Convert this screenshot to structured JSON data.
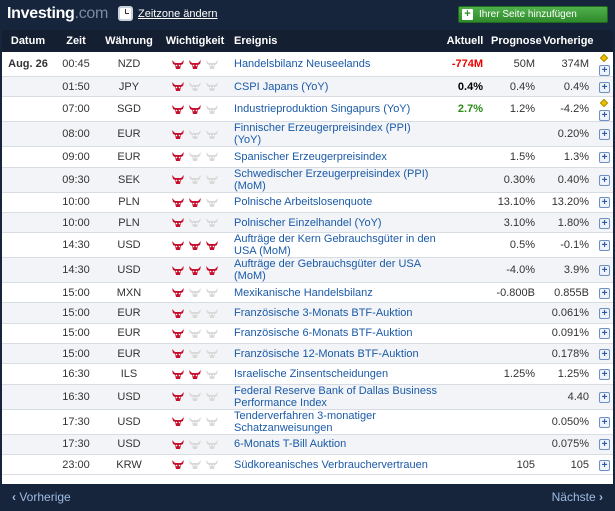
{
  "header": {
    "logo_main": "Investing",
    "logo_suffix": ".com",
    "timezone_link": "Zeitzone ändern",
    "add_button": "Ihrer Seite hinzufügen"
  },
  "table": {
    "columns": [
      "Datum",
      "Zeit",
      "Währung",
      "Wichtigkeit",
      "Ereignis",
      "Aktuell",
      "Prognose",
      "Vorherige"
    ],
    "rows": [
      {
        "date": "Aug. 26",
        "time": "00:45",
        "currency": "NZD",
        "importance": 2,
        "event": "Handelsbilanz Neuseelands",
        "actual": "-774M",
        "actual_style": "red",
        "forecast": "50M",
        "previous": "374M",
        "marker": true
      },
      {
        "date": "",
        "time": "01:50",
        "currency": "JPY",
        "importance": 1,
        "event": "CSPI Japans (YoY)",
        "actual": "0.4%",
        "actual_style": "blk",
        "forecast": "0.4%",
        "previous": "0.4%",
        "marker": false
      },
      {
        "date": "",
        "time": "07:00",
        "currency": "SGD",
        "importance": 2,
        "event": "Industrieproduktion Singapurs (YoY)",
        "actual": "2.7%",
        "actual_style": "green",
        "forecast": "1.2%",
        "previous": "-4.2%",
        "marker": true
      },
      {
        "date": "",
        "time": "08:00",
        "currency": "EUR",
        "importance": 1,
        "event": "Finnischer Erzeugerpreisindex (PPI) (YoY)",
        "actual": "",
        "actual_style": "",
        "forecast": "",
        "previous": "0.20%",
        "marker": false
      },
      {
        "date": "",
        "time": "09:00",
        "currency": "EUR",
        "importance": 1,
        "event": "Spanischer Erzeugerpreisindex",
        "actual": "",
        "actual_style": "",
        "forecast": "1.5%",
        "previous": "1.3%",
        "marker": false
      },
      {
        "date": "",
        "time": "09:30",
        "currency": "SEK",
        "importance": 1,
        "event": "Schwedischer Erzeugerpreisindex (PPI) (MoM)",
        "actual": "",
        "actual_style": "",
        "forecast": "0.30%",
        "previous": "0.40%",
        "marker": false
      },
      {
        "date": "",
        "time": "10:00",
        "currency": "PLN",
        "importance": 2,
        "event": "Polnische Arbeitslosenquote",
        "actual": "",
        "actual_style": "",
        "forecast": "13.10%",
        "previous": "13.20%",
        "marker": false
      },
      {
        "date": "",
        "time": "10:00",
        "currency": "PLN",
        "importance": 1,
        "event": "Polnischer Einzelhandel (YoY)",
        "actual": "",
        "actual_style": "",
        "forecast": "3.10%",
        "previous": "1.80%",
        "marker": false
      },
      {
        "date": "",
        "time": "14:30",
        "currency": "USD",
        "importance": 3,
        "event": "Aufträge der Kern Gebrauchsgüter in den USA (MoM)",
        "actual": "",
        "actual_style": "",
        "forecast": "0.5%",
        "previous": "-0.1%",
        "marker": false
      },
      {
        "date": "",
        "time": "14:30",
        "currency": "USD",
        "importance": 3,
        "event": "Aufträge der Gebrauchsgüter der USA (MoM)",
        "actual": "",
        "actual_style": "",
        "forecast": "-4.0%",
        "previous": "3.9%",
        "marker": false
      },
      {
        "date": "",
        "time": "15:00",
        "currency": "MXN",
        "importance": 1,
        "event": "Mexikanische Handelsbilanz",
        "actual": "",
        "actual_style": "",
        "forecast": "-0.800B",
        "previous": "0.855B",
        "marker": false
      },
      {
        "date": "",
        "time": "15:00",
        "currency": "EUR",
        "importance": 1,
        "event": "Französische 3-Monats BTF-Auktion",
        "actual": "",
        "actual_style": "",
        "forecast": "",
        "previous": "0.061%",
        "marker": false
      },
      {
        "date": "",
        "time": "15:00",
        "currency": "EUR",
        "importance": 1,
        "event": "Französische 6-Monats BTF-Auktion",
        "actual": "",
        "actual_style": "",
        "forecast": "",
        "previous": "0.091%",
        "marker": false
      },
      {
        "date": "",
        "time": "15:00",
        "currency": "EUR",
        "importance": 1,
        "event": "Französische 12-Monats BTF-Auktion",
        "actual": "",
        "actual_style": "",
        "forecast": "",
        "previous": "0.178%",
        "marker": false
      },
      {
        "date": "",
        "time": "16:30",
        "currency": "ILS",
        "importance": 2,
        "event": "Israelische Zinsentscheidungen",
        "actual": "",
        "actual_style": "",
        "forecast": "1.25%",
        "previous": "1.25%",
        "marker": false
      },
      {
        "date": "",
        "time": "16:30",
        "currency": "USD",
        "importance": 1,
        "event": "Federal Reserve Bank of Dallas Business Performance Index",
        "actual": "",
        "actual_style": "",
        "forecast": "",
        "previous": "4.40",
        "marker": false
      },
      {
        "date": "",
        "time": "17:30",
        "currency": "USD",
        "importance": 1,
        "event": "Tenderverfahren 3-monatiger Schatzanweisungen",
        "actual": "",
        "actual_style": "",
        "forecast": "",
        "previous": "0.050%",
        "marker": false
      },
      {
        "date": "",
        "time": "17:30",
        "currency": "USD",
        "importance": 1,
        "event": "6-Monats T-Bill Auktion",
        "actual": "",
        "actual_style": "",
        "forecast": "",
        "previous": "0.075%",
        "marker": false
      },
      {
        "date": "",
        "time": "23:00",
        "currency": "KRW",
        "importance": 1,
        "event": "Südkoreanisches Verbrauchervertrauen",
        "actual": "",
        "actual_style": "",
        "forecast": "105",
        "previous": "105",
        "marker": false
      }
    ]
  },
  "footer": {
    "prev_label": "Vorherige",
    "next_label": "Nächste"
  },
  "colors": {
    "background": "#16253b",
    "header_row": "#141f32",
    "link": "#1a5aa8",
    "bull_active": "#c8102e",
    "bull_inactive": "#d9d9d9"
  }
}
